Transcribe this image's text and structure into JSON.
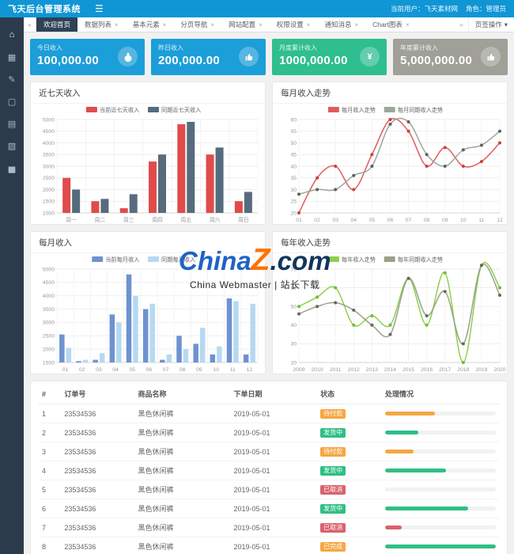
{
  "header": {
    "title": "飞天后台管理系统",
    "hamburger_icon": "☰",
    "user_label": "当前用户：飞天素材网",
    "role_label": "角色：管理员"
  },
  "tabbar": {
    "back_icon": "«",
    "forward_icon": "»",
    "ops_label": "页签操作",
    "caret_icon": "▾",
    "close_icon": "×",
    "tabs": [
      {
        "label": "欢迎首页",
        "active": true,
        "closable": false
      },
      {
        "label": "数据列表",
        "active": false,
        "closable": true
      },
      {
        "label": "基本元素",
        "active": false,
        "closable": true
      },
      {
        "label": "分页导航",
        "active": false,
        "closable": true
      },
      {
        "label": "网站配置",
        "active": false,
        "closable": true
      },
      {
        "label": "权限设置",
        "active": false,
        "closable": true
      },
      {
        "label": "通知消息",
        "active": false,
        "closable": true
      },
      {
        "label": "Chart图表",
        "active": false,
        "closable": true
      }
    ]
  },
  "sidebar": {
    "items": [
      {
        "name": "home-icon",
        "glyph": "⌂"
      },
      {
        "name": "table-icon",
        "glyph": "▦"
      },
      {
        "name": "edit-icon",
        "glyph": "✎"
      },
      {
        "name": "monitor-icon",
        "glyph": "▢"
      },
      {
        "name": "calendar-icon",
        "glyph": "▤"
      },
      {
        "name": "document-icon",
        "glyph": "▧"
      },
      {
        "name": "bar-chart-icon",
        "glyph": "▅"
      }
    ]
  },
  "stat_cards": [
    {
      "label": "今日收入",
      "value": "100,000.00",
      "bg": "#1c9ed9",
      "icon": "money-bag-icon"
    },
    {
      "label": "昨日收入",
      "value": "200,000.00",
      "bg": "#1c9ed9",
      "icon": "thumbs-up-icon"
    },
    {
      "label": "月度累计收入",
      "value": "1000,000.00",
      "bg": "#2fbe8f",
      "icon": "yen-circle-icon"
    },
    {
      "label": "年度累计收入",
      "value": "5,000,000.00",
      "bg": "#a0a099",
      "icon": "thumbs-up-icon"
    }
  ],
  "chart_data": [
    {
      "type": "bar",
      "title": "近七天收入",
      "xlabel": "",
      "ylabel": "",
      "categories": [
        "周一",
        "周二",
        "周三",
        "周四",
        "周五",
        "周六",
        "周日"
      ],
      "series": [
        {
          "name": "当前近七天收入",
          "color": "#e04b4b",
          "values": [
            2500,
            1500,
            1200,
            3200,
            4800,
            3500,
            1500
          ]
        },
        {
          "name": "同期近七天收入",
          "color": "#566b7e",
          "values": [
            2000,
            1600,
            1800,
            3500,
            4900,
            3800,
            1900
          ]
        }
      ],
      "ylim": [
        1000,
        5000
      ],
      "ystep": 500,
      "grid": true,
      "legend_position": "top"
    },
    {
      "type": "line",
      "title": "每月收入走势",
      "xlabel": "",
      "ylabel": "",
      "categories": [
        "01",
        "02",
        "03",
        "04",
        "05",
        "06",
        "07",
        "08",
        "09",
        "10",
        "11",
        "12"
      ],
      "series": [
        {
          "name": "每月收入走势",
          "color": "#e05c5c",
          "marker_color": "#cf3e3e",
          "values": [
            20,
            35,
            40,
            30,
            45,
            60,
            55,
            40,
            48,
            40,
            42,
            50
          ]
        },
        {
          "name": "每月同期收入走势",
          "color": "#9aa89b",
          "marker_color": "#5f5f5f",
          "values": [
            28,
            30,
            30,
            36,
            40,
            58,
            59,
            45,
            40,
            47,
            49,
            55
          ]
        }
      ],
      "ylim": [
        20,
        60
      ],
      "ystep": 5,
      "grid": true,
      "legend_position": "top"
    },
    {
      "type": "bar",
      "title": "每月收入",
      "xlabel": "",
      "ylabel": "",
      "categories": [
        "01",
        "02",
        "03",
        "04",
        "05",
        "06",
        "07",
        "08",
        "09",
        "10",
        "11",
        "12"
      ],
      "series": [
        {
          "name": "当前每月收入",
          "color": "#6e92d0",
          "values": [
            2550,
            1550,
            1600,
            3300,
            4800,
            3500,
            1600,
            2500,
            2200,
            1800,
            3900,
            1800
          ]
        },
        {
          "name": "同期每月收入",
          "color": "#b5d9f2",
          "values": [
            2050,
            1600,
            1850,
            3000,
            4000,
            3700,
            1800,
            2000,
            2800,
            2100,
            3800,
            3700
          ]
        }
      ],
      "ylim": [
        1500,
        5000
      ],
      "ystep": 500,
      "grid": true,
      "legend_position": "top"
    },
    {
      "type": "line",
      "title": "每年收入走势",
      "xlabel": "",
      "ylabel": "",
      "categories": [
        "2009",
        "2010",
        "2011",
        "2012",
        "2013",
        "2014",
        "2015",
        "2016",
        "2017",
        "2018",
        "2019",
        "2020"
      ],
      "series": [
        {
          "name": "每年收入走势",
          "color": "#8bd24c",
          "marker_color": "#6fbe35",
          "values": [
            50,
            55,
            60,
            40,
            45,
            40,
            65,
            40,
            68,
            20,
            72,
            60
          ]
        },
        {
          "name": "每年同期收入走势",
          "color": "#9aa08a",
          "marker_color": "#64685a",
          "values": [
            46,
            50,
            52,
            48,
            40,
            35,
            65,
            45,
            58,
            30,
            72,
            56
          ]
        }
      ],
      "ylim": [
        20,
        70
      ],
      "ystep": 10,
      "grid": true,
      "legend_position": "top"
    }
  ],
  "watermark": {
    "part1": "China",
    "part2": "Z",
    "part3": ".com",
    "color1": "#1f62c6",
    "color2": "#ff7200",
    "color3": "#12355f",
    "subtitle": "China Webmaster | 站长下载"
  },
  "table": {
    "headers": [
      "#",
      "订单号",
      "商品名称",
      "下单日期",
      "状态",
      "处理情况"
    ],
    "rows": [
      {
        "index": "1",
        "order_no": "23534536",
        "product": "黑色休闲裤",
        "date": "2019-05-01",
        "status": "待付款",
        "status_color": "#f5a742",
        "progress": 45,
        "progress_color": "#f5a742"
      },
      {
        "index": "2",
        "order_no": "23534536",
        "product": "黑色休闲裤",
        "date": "2019-05-01",
        "status": "发货中",
        "status_color": "#2fbf85",
        "progress": 30,
        "progress_color": "#2fbf85"
      },
      {
        "index": "3",
        "order_no": "23534536",
        "product": "黑色休闲裤",
        "date": "2019-05-01",
        "status": "待付款",
        "status_color": "#f5a742",
        "progress": 26,
        "progress_color": "#f5a742"
      },
      {
        "index": "4",
        "order_no": "23534536",
        "product": "黑色休闲裤",
        "date": "2019-05-01",
        "status": "发货中",
        "status_color": "#2fbf85",
        "progress": 55,
        "progress_color": "#2fbf85"
      },
      {
        "index": "5",
        "order_no": "23534536",
        "product": "黑色休闲裤",
        "date": "2019-05-01",
        "status": "已取消",
        "status_color": "#d9626b",
        "progress": 0,
        "progress_color": "#d9626b"
      },
      {
        "index": "6",
        "order_no": "23534536",
        "product": "黑色休闲裤",
        "date": "2019-05-01",
        "status": "发货中",
        "status_color": "#2fbf85",
        "progress": 75,
        "progress_color": "#2fbf85"
      },
      {
        "index": "7",
        "order_no": "23534536",
        "product": "黑色休闲裤",
        "date": "2019-05-01",
        "status": "已取消",
        "status_color": "#d9626b",
        "progress": 15,
        "progress_color": "#d9626b"
      },
      {
        "index": "8",
        "order_no": "23534536",
        "product": "黑色休闲裤",
        "date": "2019-05-01",
        "status": "已完成",
        "status_color": "#f5a742",
        "progress": 100,
        "progress_color": "#2fbf85"
      }
    ]
  }
}
